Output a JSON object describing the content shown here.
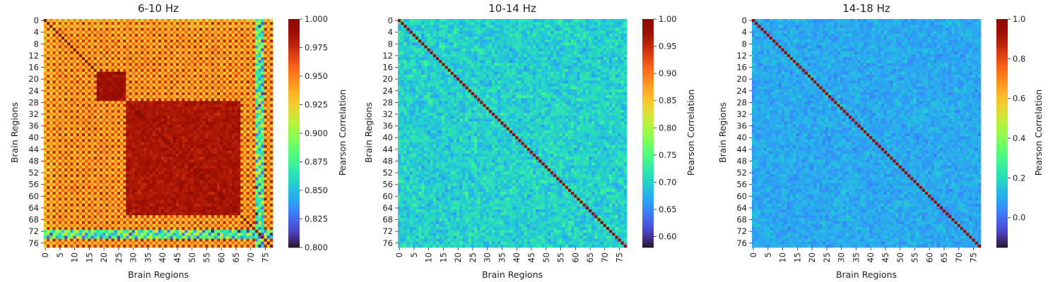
{
  "chart_data": [
    {
      "type": "heatmap",
      "title": "6-10 Hz",
      "xlabel": "Brain Regions",
      "ylabel": "Brain Regions",
      "colorbar_label": "Pearson Correlation",
      "colormap": "turbo",
      "n_regions": 78,
      "vmin": 0.8,
      "vmax": 1.0,
      "x_tick_labels": [
        "0",
        "5",
        "10",
        "15",
        "20",
        "25",
        "30",
        "35",
        "40",
        "45",
        "50",
        "55",
        "60",
        "65",
        "70",
        "75"
      ],
      "y_tick_labels": [
        "0",
        "4",
        "8",
        "12",
        "16",
        "20",
        "24",
        "28",
        "32",
        "36",
        "40",
        "44",
        "48",
        "52",
        "56",
        "60",
        "64",
        "68",
        "72",
        "76"
      ],
      "colorbar_ticks": [
        "0.800",
        "0.825",
        "0.850",
        "0.875",
        "0.900",
        "0.925",
        "0.950",
        "0.975",
        "1.000"
      ],
      "pattern": {
        "description": "Mostly high correlation (0.93-1.0); striped checkerboard bands, dark core block ~regions 28-66, low-correlation band at regions 72-74",
        "background_mean": 0.955,
        "core_block": [
          28,
          66
        ],
        "core_mean": 0.985,
        "low_band": [
          72,
          74
        ],
        "low_band_mean": 0.86
      }
    },
    {
      "type": "heatmap",
      "title": "10-14 Hz",
      "xlabel": "Brain Regions",
      "ylabel": "Brain Regions",
      "colorbar_label": "Pearson Correlation",
      "colormap": "turbo",
      "n_regions": 78,
      "vmin": 0.58,
      "vmax": 1.0,
      "x_tick_labels": [
        "0",
        "5",
        "10",
        "15",
        "20",
        "25",
        "30",
        "35",
        "40",
        "45",
        "50",
        "55",
        "60",
        "65",
        "70",
        "75"
      ],
      "y_tick_labels": [
        "0",
        "4",
        "8",
        "12",
        "16",
        "20",
        "24",
        "28",
        "32",
        "36",
        "40",
        "44",
        "48",
        "52",
        "56",
        "60",
        "64",
        "68",
        "72",
        "76"
      ],
      "colorbar_ticks": [
        "0.60",
        "0.65",
        "0.70",
        "0.75",
        "0.80",
        "0.85",
        "0.90",
        "0.95",
        "1.00"
      ],
      "pattern": {
        "description": "Off-diagonal values ~0.65-0.75 (mean ~0.70), diagonal = 1.0",
        "offdiag_mean": 0.7,
        "offdiag_spread": 0.05
      }
    },
    {
      "type": "heatmap",
      "title": "14-18 Hz",
      "xlabel": "Brain Regions",
      "ylabel": "Brain Regions",
      "colorbar_label": "Pearson Correlation",
      "colormap": "turbo",
      "n_regions": 78,
      "vmin": -0.15,
      "vmax": 1.0,
      "x_tick_labels": [
        "0",
        "5",
        "10",
        "15",
        "20",
        "25",
        "30",
        "35",
        "40",
        "45",
        "50",
        "55",
        "60",
        "65",
        "70",
        "75"
      ],
      "y_tick_labels": [
        "0",
        "4",
        "8",
        "12",
        "16",
        "20",
        "24",
        "28",
        "32",
        "36",
        "40",
        "44",
        "48",
        "52",
        "56",
        "60",
        "64",
        "68",
        "72",
        "76"
      ],
      "colorbar_ticks": [
        "0.0",
        "0.2",
        "0.4",
        "0.6",
        "0.8",
        "1.0"
      ],
      "pattern": {
        "description": "Off-diagonal values ~0.0-0.2 (mean ~0.1), diagonal = 1.0",
        "offdiag_mean": 0.1,
        "offdiag_spread": 0.09
      }
    }
  ]
}
